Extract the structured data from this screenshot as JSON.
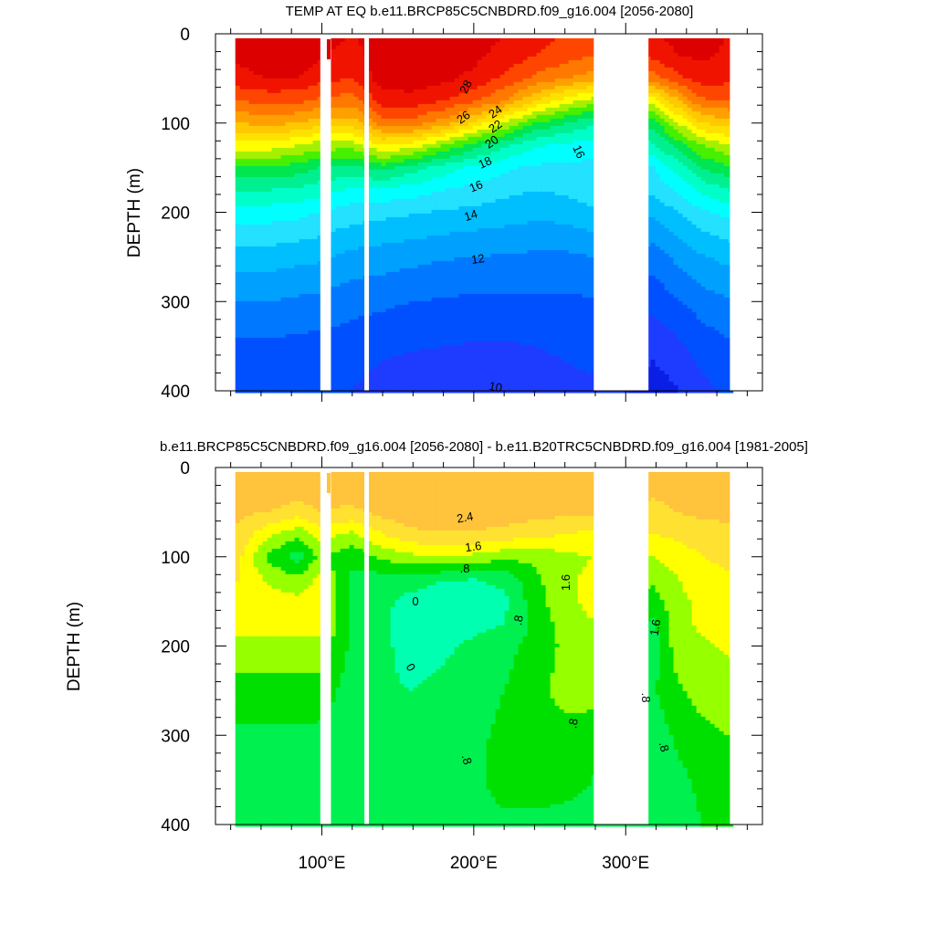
{
  "chart_data": [
    {
      "type": "heatmap",
      "title": "TEMP AT EQ b.e11.BRCP85C5CNBDRD.f09_g16.004 [2056-2080]",
      "xlabel": "",
      "ylabel": "DEPTH (m)",
      "xlim": [
        30,
        390
      ],
      "ylim": [
        400,
        0
      ],
      "y_ticks": [
        "0",
        "100",
        "200",
        "300",
        "400"
      ],
      "x_ticks": [
        "100°E",
        "200°E",
        "300°E"
      ],
      "x_ticks_labeled": false,
      "colormap": "temperature (blue to dark red)",
      "contour_labels": [
        "28",
        "26",
        "24",
        "22",
        "20",
        "18",
        "16",
        "16",
        "14",
        "12",
        "10"
      ],
      "land_columns_deg": [
        [
          99,
          106
        ],
        [
          128,
          131
        ],
        [
          279,
          315
        ],
        [
          369,
          390
        ]
      ],
      "x": [
        43,
        65,
        85,
        98,
        120,
        140,
        160,
        180,
        200,
        220,
        240,
        260,
        278,
        318,
        335,
        350,
        368
      ],
      "y": [
        0,
        25,
        50,
        75,
        100,
        125,
        150,
        175,
        200,
        250,
        300,
        350,
        400
      ],
      "z": [
        [
          28.3,
          29.0,
          29.0,
          28.5,
          28.0,
          28.8,
          29.0,
          28.8,
          28.5,
          28.0,
          27.5,
          27.0,
          26.5,
          28.0,
          28.5,
          28.5,
          28.0
        ],
        [
          28.1,
          28.8,
          28.8,
          28.2,
          27.5,
          28.7,
          28.9,
          28.7,
          28.3,
          27.6,
          27.0,
          26.5,
          26.0,
          27.2,
          28.0,
          28.2,
          27.8
        ],
        [
          27.6,
          28.0,
          28.0,
          27.3,
          27.0,
          28.5,
          28.6,
          28.3,
          27.7,
          26.8,
          25.8,
          25.0,
          24.5,
          25.5,
          26.8,
          27.5,
          27.3
        ],
        [
          26.0,
          26.3,
          26.2,
          25.8,
          25.5,
          27.5,
          27.6,
          27.0,
          26.2,
          25.0,
          23.0,
          21.5,
          20.5,
          21.5,
          24.0,
          25.8,
          26.0
        ],
        [
          24.0,
          24.3,
          24.0,
          23.5,
          23.5,
          25.5,
          25.5,
          24.5,
          22.8,
          21.0,
          19.0,
          18.0,
          17.2,
          18.5,
          21.0,
          23.0,
          23.5
        ],
        [
          21.5,
          21.5,
          21.0,
          20.5,
          20.5,
          22.0,
          21.5,
          20.0,
          18.5,
          17.2,
          16.2,
          15.8,
          15.5,
          16.8,
          18.5,
          20.0,
          21.0
        ],
        [
          19.0,
          19.0,
          18.5,
          18.0,
          17.8,
          18.5,
          17.5,
          16.5,
          15.8,
          15.2,
          14.8,
          14.8,
          14.7,
          15.0,
          16.5,
          18.0,
          18.8
        ],
        [
          17.0,
          17.0,
          16.8,
          16.5,
          15.8,
          15.8,
          15.5,
          15.0,
          14.7,
          14.3,
          14.0,
          14.2,
          14.5,
          14.2,
          15.2,
          16.3,
          17.0
        ],
        [
          15.5,
          15.5,
          15.3,
          15.0,
          14.5,
          14.3,
          14.1,
          13.9,
          13.7,
          13.5,
          13.3,
          13.4,
          13.8,
          13.2,
          14.0,
          14.8,
          15.3
        ],
        [
          13.5,
          13.5,
          13.3,
          13.2,
          12.7,
          12.5,
          12.3,
          12.1,
          12.0,
          11.9,
          11.8,
          11.8,
          12.0,
          11.5,
          12.3,
          12.9,
          13.3
        ],
        [
          12.0,
          12.0,
          11.8,
          11.7,
          11.3,
          11.2,
          11.0,
          10.9,
          10.8,
          10.8,
          10.8,
          10.8,
          10.9,
          10.3,
          10.9,
          11.5,
          11.9
        ],
        [
          10.8,
          10.8,
          10.7,
          10.6,
          10.6,
          10.3,
          10.1,
          10.0,
          9.9,
          9.9,
          10.0,
          10.1,
          10.2,
          9.3,
          9.8,
          10.4,
          10.8
        ],
        [
          10.2,
          10.2,
          10.1,
          10.0,
          10.0,
          9.4,
          9.2,
          9.2,
          9.3,
          9.5,
          9.7,
          9.8,
          9.9,
          8.4,
          9.0,
          9.7,
          10.2
        ]
      ]
    },
    {
      "type": "heatmap",
      "title": "b.e11.BRCP85C5CNBDRD.f09_g16.004 [2056-2080] - b.e11.B20TRC5CNBDRD.f09_g16.004 [1981-2005]",
      "xlabel": "",
      "ylabel": "DEPTH (m)",
      "xlim": [
        30,
        390
      ],
      "ylim": [
        400,
        0
      ],
      "y_ticks": [
        "0",
        "100",
        "200",
        "300",
        "400"
      ],
      "x_ticks": [
        "100°E",
        "200°E",
        "300°E"
      ],
      "x_ticks_labeled": true,
      "colormap": "difference (cyan-green to orange)",
      "contour_labels": [
        "2.4",
        "1.6",
        ".8",
        "0",
        "0",
        ".8",
        "1.6",
        "1.6",
        ".8",
        ".8",
        ".8",
        ".8"
      ],
      "land_columns_deg": [
        [
          99,
          106
        ],
        [
          128,
          131
        ],
        [
          279,
          315
        ],
        [
          369,
          390
        ]
      ],
      "x": [
        43,
        65,
        85,
        98,
        120,
        140,
        160,
        180,
        200,
        220,
        240,
        260,
        278,
        318,
        335,
        350,
        368
      ],
      "y": [
        0,
        25,
        50,
        75,
        100,
        125,
        150,
        175,
        200,
        250,
        300,
        350,
        400
      ],
      "z": [
        [
          2.65,
          2.7,
          2.7,
          2.65,
          2.7,
          2.85,
          2.9,
          2.9,
          2.9,
          2.85,
          2.8,
          2.8,
          2.75,
          2.5,
          2.6,
          2.8,
          2.7
        ],
        [
          2.6,
          2.65,
          2.6,
          2.6,
          2.6,
          2.8,
          2.85,
          2.85,
          2.85,
          2.8,
          2.75,
          2.75,
          2.7,
          2.45,
          2.55,
          2.7,
          2.6
        ],
        [
          2.5,
          2.4,
          2.2,
          2.4,
          2.3,
          2.55,
          2.65,
          2.7,
          2.7,
          2.65,
          2.55,
          2.5,
          2.45,
          2.3,
          2.4,
          2.5,
          2.5
        ],
        [
          2.35,
          1.7,
          1.3,
          1.8,
          1.5,
          2.0,
          2.3,
          2.35,
          2.35,
          2.25,
          2.1,
          2.0,
          1.9,
          2.0,
          2.1,
          2.2,
          2.3
        ],
        [
          2.2,
          1.1,
          0.6,
          1.3,
          0.9,
          1.3,
          1.5,
          1.6,
          1.5,
          1.3,
          1.3,
          1.5,
          1.6,
          1.6,
          1.8,
          2.0,
          2.1
        ],
        [
          2.05,
          1.5,
          1.3,
          1.7,
          0.7,
          0.6,
          0.6,
          0.45,
          0.4,
          0.5,
          1.1,
          1.5,
          1.7,
          1.3,
          1.6,
          1.8,
          1.95
        ],
        [
          1.95,
          1.8,
          1.7,
          1.85,
          0.7,
          0.5,
          0.25,
          0.05,
          0.1,
          0.3,
          1.0,
          1.5,
          1.7,
          1.0,
          1.5,
          1.7,
          1.85
        ],
        [
          1.85,
          1.8,
          1.75,
          1.8,
          0.7,
          0.5,
          0.1,
          0.1,
          0.25,
          0.4,
          0.9,
          1.4,
          1.6,
          0.7,
          1.5,
          1.65,
          1.75
        ],
        [
          1.45,
          1.45,
          1.45,
          1.45,
          0.7,
          0.5,
          0.2,
          0.3,
          0.5,
          0.7,
          0.9,
          1.3,
          1.5,
          0.6,
          1.45,
          1.55,
          1.65
        ],
        [
          1.05,
          1.05,
          1.05,
          1.05,
          0.6,
          0.45,
          0.4,
          0.55,
          0.7,
          0.8,
          1.0,
          1.4,
          1.45,
          0.75,
          1.15,
          1.35,
          1.45
        ],
        [
          0.7,
          0.7,
          0.7,
          0.7,
          0.6,
          0.45,
          0.55,
          0.65,
          0.75,
          0.85,
          1.0,
          1.0,
          0.9,
          0.55,
          0.9,
          1.1,
          1.2
        ],
        [
          0.6,
          0.6,
          0.6,
          0.6,
          0.55,
          0.5,
          0.6,
          0.7,
          0.75,
          0.9,
          0.9,
          0.85,
          0.8,
          0.5,
          0.7,
          0.9,
          1.05
        ],
        [
          0.55,
          0.55,
          0.55,
          0.55,
          0.5,
          0.5,
          0.6,
          0.65,
          0.7,
          0.75,
          0.75,
          0.75,
          0.75,
          0.45,
          0.6,
          0.8,
          0.95
        ]
      ]
    }
  ]
}
